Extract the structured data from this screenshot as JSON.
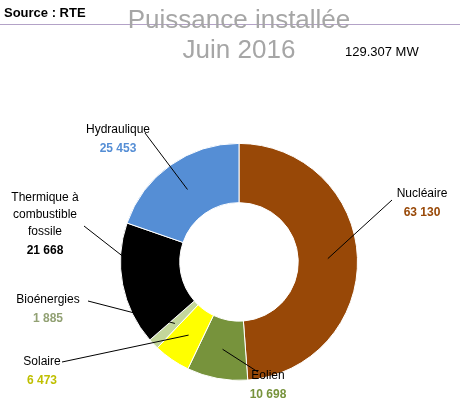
{
  "chart_data": {
    "type": "doughnut",
    "title": [
      "Puissance installée",
      "Juin 2016"
    ],
    "source": "Source : RTE",
    "annotations": [
      "129.307 MW"
    ],
    "categories": [
      "Nucléaire",
      "Eolien",
      "Solaire",
      "Bioénergies",
      "Thermique à combustible fossile",
      "Hydraulique"
    ],
    "values": [
      63130,
      10698,
      6473,
      1885,
      21668,
      25453
    ],
    "value_labels": [
      "63 130",
      "10 698",
      "6 473",
      "1 885",
      "21 668",
      "25 453"
    ],
    "colors": [
      "#984807",
      "#77933C",
      "#FFFF00",
      "#C3D69B",
      "#000000",
      "#558ED5"
    ],
    "data_labels": true
  }
}
